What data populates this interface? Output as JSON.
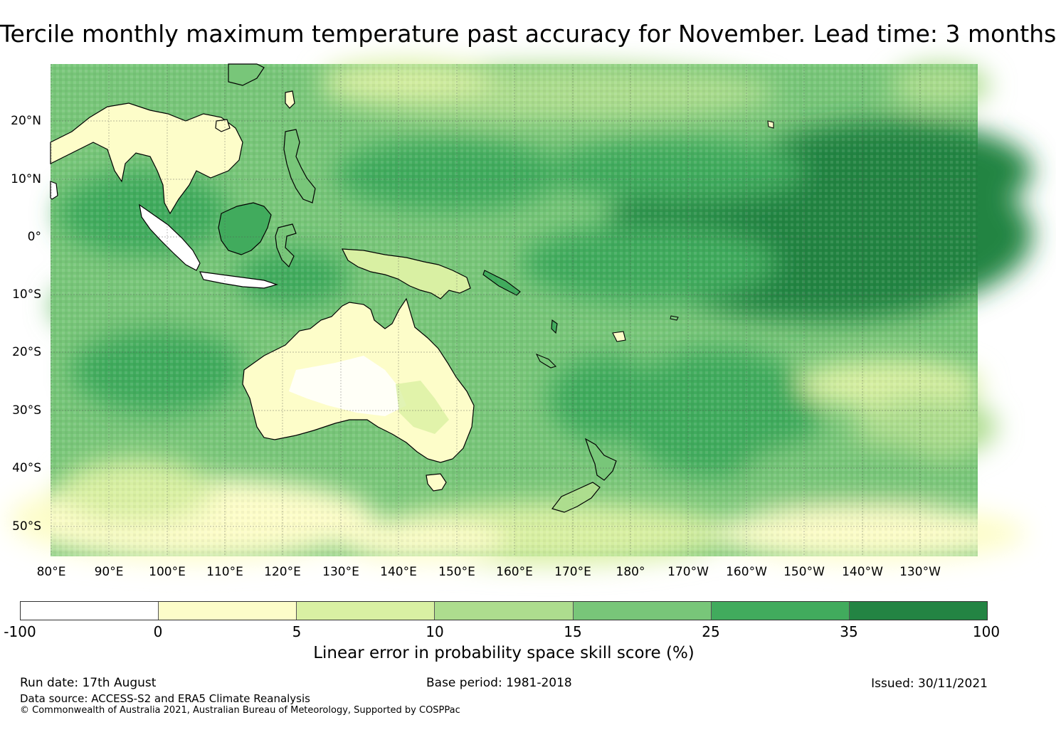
{
  "title": "Tercile monthly maximum temperature past accuracy for November. Lead time: 3 months",
  "map": {
    "lat_labels": [
      "20°N",
      "10°N",
      "0°",
      "10°S",
      "20°S",
      "30°S",
      "40°S",
      "50°S"
    ],
    "lon_labels": [
      "80°E",
      "90°E",
      "100°E",
      "110°E",
      "120°E",
      "130°E",
      "140°E",
      "150°E",
      "160°E",
      "170°E",
      "180°",
      "170°W",
      "160°W",
      "150°W",
      "140°W",
      "130°W"
    ]
  },
  "colorbar": {
    "ticks": [
      "-100",
      "0",
      "5",
      "10",
      "15",
      "25",
      "35",
      "100"
    ],
    "colors": [
      "#ffffff",
      "#fdfdc9",
      "#d9f0a3",
      "#addd8e",
      "#78c679",
      "#41ab5d",
      "#238443"
    ],
    "label": "Linear error in probability space skill score (%)"
  },
  "footer": {
    "run_date": "Run date: 17th August",
    "base_period": "Base period: 1981-2018",
    "issued": "Issued: 30/11/2021",
    "data_source": "Data source: ACCESS-S2 and ERA5 Climate Reanalysis",
    "copyright": "© Commonwealth of Australia 2021, Australian Bureau of Meteorology, Supported by COSPPac"
  }
}
